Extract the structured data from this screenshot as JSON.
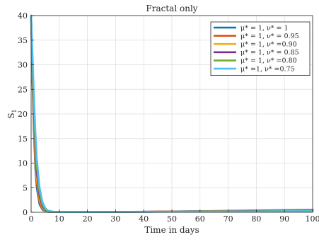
{
  "chart_data": {
    "type": "line",
    "title": "Fractal only",
    "xlabel": "Time in days",
    "ylabel": "S",
    "ylabel_subscript": "1",
    "xlim": [
      0,
      100
    ],
    "ylim": [
      0,
      40
    ],
    "xticks": [
      0,
      10,
      20,
      30,
      40,
      50,
      60,
      70,
      80,
      90,
      100
    ],
    "yticks": [
      0,
      5,
      10,
      15,
      20,
      25,
      30,
      35,
      40
    ],
    "grid": true,
    "legend_position": "top-right",
    "series": [
      {
        "name": "μ* = 1, ν* = 1",
        "color": "#0072BD",
        "x": [
          0,
          0.5,
          1,
          1.5,
          2,
          3,
          4,
          5,
          6,
          8,
          10,
          20,
          30,
          40,
          50,
          60,
          70,
          80,
          90,
          100
        ],
        "y": [
          40,
          26,
          16,
          9,
          5,
          1.6,
          0.55,
          0.2,
          0.09,
          0.05,
          0.05,
          0.06,
          0.08,
          0.12,
          0.17,
          0.23,
          0.3,
          0.38,
          0.45,
          0.52
        ]
      },
      {
        "name": "μ* = 1, ν* = 0.95",
        "color": "#D95319",
        "x": [
          0,
          0.5,
          1,
          1.5,
          2,
          3,
          4,
          5,
          6,
          8,
          10,
          20,
          30,
          40,
          50,
          60,
          70,
          80,
          90,
          100
        ],
        "y": [
          40,
          27,
          17,
          10,
          6,
          2,
          0.7,
          0.25,
          0.1,
          0.05,
          0.05,
          0.06,
          0.08,
          0.11,
          0.16,
          0.21,
          0.27,
          0.34,
          0.4,
          0.46
        ]
      },
      {
        "name": "μ* = 1, ν* =0.90",
        "color": "#EDB120",
        "x": [
          0,
          0.5,
          1,
          1.5,
          2,
          3,
          4,
          5,
          6,
          8,
          10,
          20,
          30,
          40,
          50,
          60,
          70,
          80,
          90,
          100
        ],
        "y": [
          40,
          28,
          18.5,
          11.5,
          7,
          2.6,
          0.95,
          0.35,
          0.13,
          0.06,
          0.05,
          0.06,
          0.08,
          0.11,
          0.15,
          0.19,
          0.24,
          0.3,
          0.35,
          0.4
        ]
      },
      {
        "name": "μ* = 1, ν* = 0.85",
        "color": "#7E2F8E",
        "x": [
          0,
          0.5,
          1,
          1.5,
          2,
          3,
          4,
          5,
          6,
          8,
          10,
          20,
          30,
          40,
          50,
          60,
          70,
          80,
          90,
          100
        ],
        "y": [
          40,
          29,
          20,
          13,
          8.2,
          3.2,
          1.25,
          0.5,
          0.18,
          0.07,
          0.05,
          0.06,
          0.08,
          0.1,
          0.13,
          0.17,
          0.21,
          0.25,
          0.3,
          0.34
        ]
      },
      {
        "name": "μ* = 1, ν* =0.80",
        "color": "#77AC30",
        "x": [
          0,
          0.5,
          1,
          1.5,
          2,
          3,
          4,
          5,
          6,
          8,
          10,
          20,
          30,
          40,
          50,
          60,
          70,
          80,
          90,
          100
        ],
        "y": [
          40,
          30,
          21.5,
          14.5,
          9.5,
          4,
          1.6,
          0.65,
          0.25,
          0.08,
          0.05,
          0.06,
          0.07,
          0.09,
          0.12,
          0.15,
          0.18,
          0.21,
          0.25,
          0.28
        ]
      },
      {
        "name": "μ* =1, ν* =0.75",
        "color": "#4DBEEE",
        "x": [
          0,
          0.5,
          1,
          1.5,
          2,
          3,
          4,
          5,
          6,
          8,
          10,
          20,
          30,
          40,
          50,
          60,
          70,
          80,
          90,
          100
        ],
        "y": [
          40,
          32,
          23.5,
          16.5,
          11,
          5,
          2.1,
          0.85,
          0.35,
          0.1,
          0.06,
          0.06,
          0.07,
          0.09,
          0.11,
          0.13,
          0.15,
          0.18,
          0.2,
          0.22
        ]
      }
    ]
  }
}
